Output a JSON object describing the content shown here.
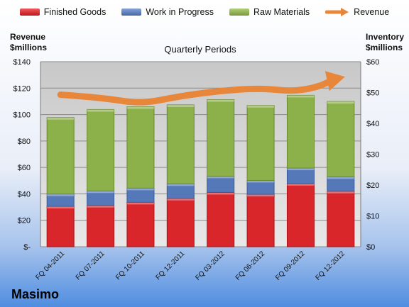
{
  "legend": [
    {
      "name": "Finished Goods",
      "color": "#d9262b",
      "type": "bar"
    },
    {
      "name": "Work in Progress",
      "color": "#5578b8",
      "type": "bar"
    },
    {
      "name": "Raw Materials",
      "color": "#8cb04a",
      "type": "bar"
    },
    {
      "name": "Revenue",
      "color": "#e8863a",
      "type": "arrow"
    }
  ],
  "labels": {
    "left_axis_title_1": "Revenue",
    "left_axis_title_2": "$millions",
    "right_axis_title_1": "Inventory",
    "right_axis_title_2": "$millions",
    "company": "Masimo"
  },
  "chart_data": {
    "type": "bar",
    "stacked": true,
    "subtitle": "Quarterly Periods",
    "categories": [
      "FQ 04-2011",
      "FQ 07-2011",
      "FQ 10-2011",
      "FQ 12-2011",
      "FQ 03-2012",
      "FQ 06-2012",
      "FQ 09-2012",
      "FQ 12-2012"
    ],
    "inventory_axis": {
      "title": "Inventory $millions",
      "range": [
        0,
        60
      ],
      "ticks": [
        0,
        10,
        20,
        30,
        40,
        50,
        60
      ],
      "tick_labels": [
        "$0",
        "$10",
        "$20",
        "$30",
        "$40",
        "$50",
        "$60"
      ]
    },
    "revenue_axis": {
      "title": "Revenue $millions",
      "range": [
        0,
        140
      ],
      "ticks": [
        0,
        20,
        40,
        60,
        80,
        100,
        120,
        140
      ],
      "tick_labels": [
        "$-",
        "$20",
        "$40",
        "$60",
        "$80",
        "$100",
        "$120",
        "$140"
      ]
    },
    "series": [
      {
        "name": "Finished Goods",
        "color": "#d9262b",
        "values": [
          13.1,
          13.4,
          14.4,
          15.7,
          17.6,
          17.0,
          20.5,
          18.0
        ]
      },
      {
        "name": "Work in Progress",
        "color": "#5578b8",
        "values": [
          4.0,
          4.7,
          4.6,
          4.7,
          5.3,
          4.5,
          5.0,
          4.7
        ]
      },
      {
        "name": "Raw Materials",
        "color": "#8cb04a",
        "values": [
          24.8,
          26.4,
          26.4,
          25.6,
          24.8,
          24.3,
          23.6,
          24.4
        ]
      }
    ],
    "line_series": {
      "name": "Revenue",
      "axis": "revenue",
      "color": "#e8863a",
      "values": [
        115,
        113,
        108,
        114,
        118,
        120,
        117,
        127
      ]
    },
    "grid": true,
    "legend_position": "top"
  }
}
